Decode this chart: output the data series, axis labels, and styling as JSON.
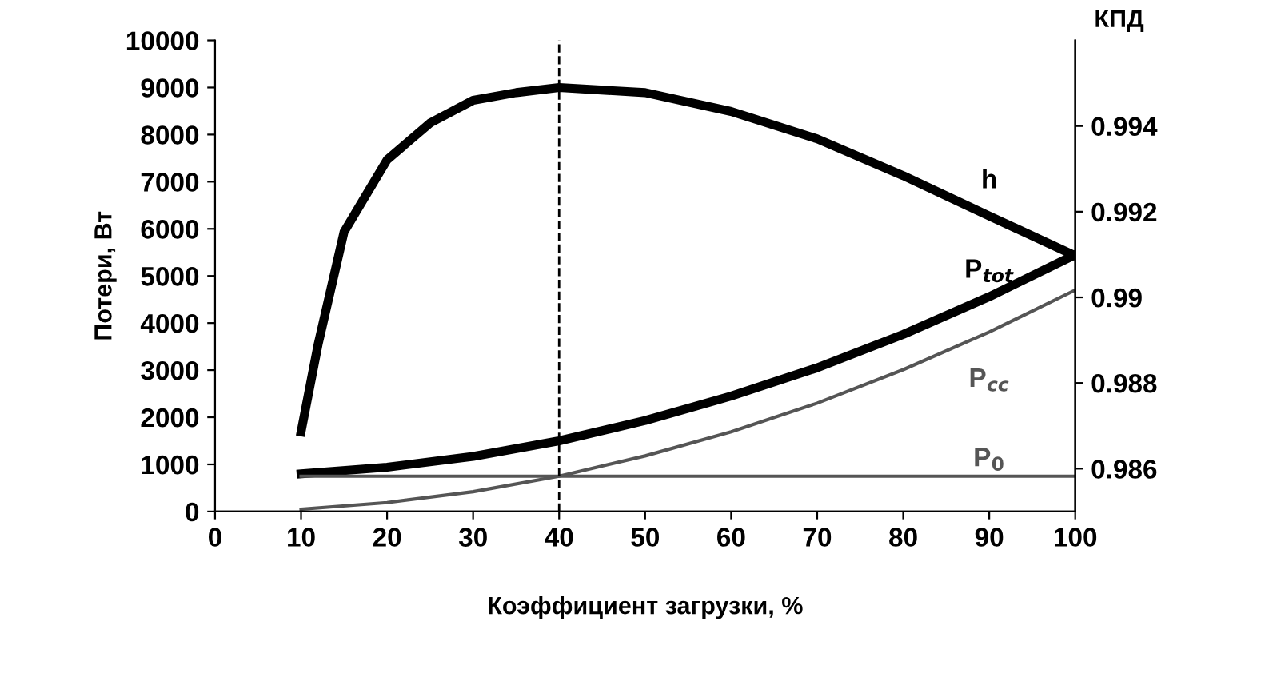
{
  "chart_data": {
    "type": "line",
    "xlabel": "Коэффициент загрузки, %",
    "ylabel": "Потери, Вт",
    "y2label": "КПД",
    "x": [
      10,
      20,
      30,
      40,
      50,
      60,
      70,
      80,
      90,
      100
    ],
    "series": [
      {
        "name": "h",
        "color": "#000000",
        "axis": "y2",
        "x": [
          10,
          12,
          15,
          20,
          25,
          30,
          35,
          40,
          50,
          60,
          70,
          80,
          90,
          100
        ],
        "values": [
          0.98686,
          0.98892,
          0.99153,
          0.99321,
          0.99407,
          0.9946,
          0.99478,
          0.9949,
          0.99478,
          0.99434,
          0.9937,
          0.99284,
          0.9919,
          0.99097
        ]
      },
      {
        "name": "P$_{tot}$",
        "color": "#000000",
        "values": [
          800,
          940,
          1170,
          1500,
          1930,
          2450,
          3050,
          3760,
          4560,
          5450
        ]
      },
      {
        "name": "P$_{cc}$",
        "color": "#555555",
        "values": [
          50,
          190,
          420,
          750,
          1180,
          1690,
          2300,
          3010,
          3810,
          4700
        ]
      },
      {
        "name": "P$_{0}$",
        "color": "#555555",
        "values": [
          750,
          750,
          750,
          750,
          750,
          750,
          750,
          750,
          750,
          750
        ]
      }
    ],
    "xlim": [
      0,
      100
    ],
    "xticks": [
      0,
      10,
      20,
      30,
      40,
      50,
      60,
      70,
      80,
      90,
      100
    ],
    "ylim": [
      0,
      10000
    ],
    "yticks": [
      0,
      1000,
      2000,
      3000,
      4000,
      5000,
      6000,
      7000,
      8000,
      9000,
      10000
    ],
    "y2lim": [
      0.985,
      0.996
    ],
    "y2ticks": [
      0.986,
      0.988,
      0.99,
      0.992,
      0.994
    ],
    "ref_lines": [
      {
        "axis": "x",
        "value": 40,
        "color": "#000000",
        "line_style": "dashed"
      }
    ],
    "grid": false,
    "legend": false,
    "marker": "none",
    "line_style": "solid"
  }
}
